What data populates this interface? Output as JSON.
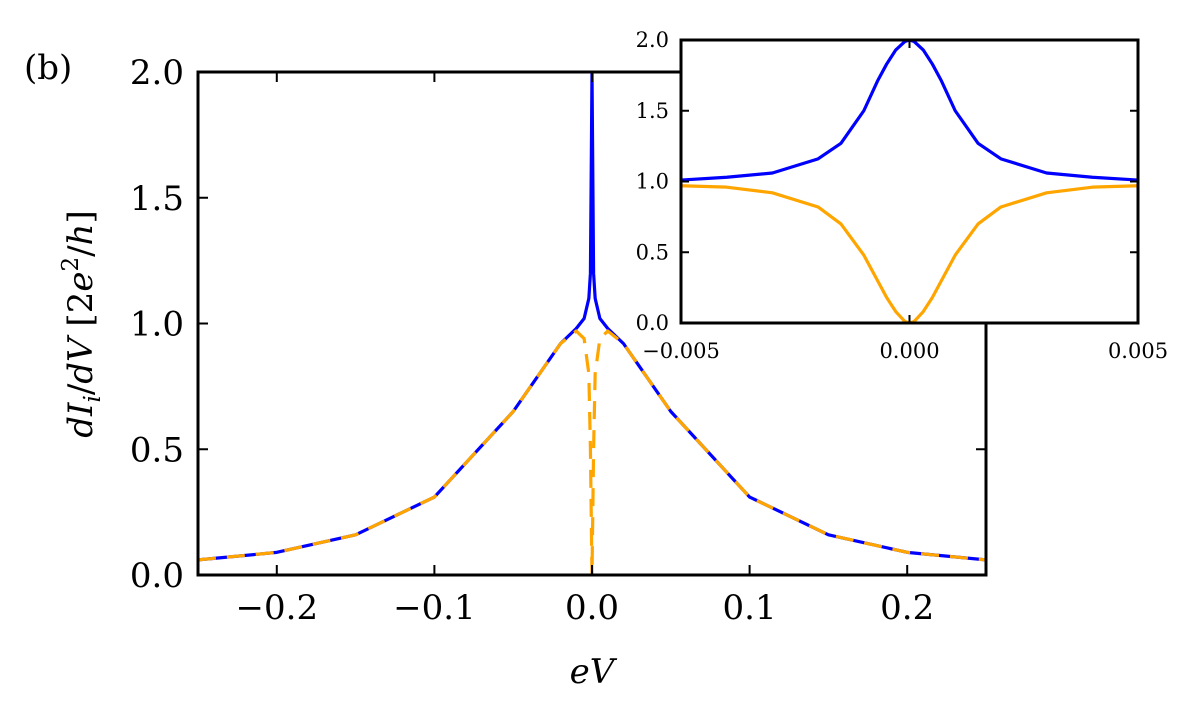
{
  "figure_label": "(b)",
  "chart_data": [
    {
      "id": "main",
      "type": "line",
      "xlabel": "eV",
      "ylabel": "dI_i/dV [2e^2/h]",
      "xlim": [
        -0.25,
        0.25
      ],
      "ylim": [
        0.0,
        2.0
      ],
      "x_ticks": [
        -0.2,
        -0.1,
        0.0,
        0.1,
        0.2
      ],
      "x_tick_labels": [
        "−0.2",
        "−0.1",
        "0.0",
        "0.1",
        "0.2"
      ],
      "y_ticks": [
        0.0,
        0.5,
        1.0,
        1.5,
        2.0
      ],
      "y_tick_labels": [
        "0.0",
        "0.5",
        "1.0",
        "1.5",
        "2.0"
      ],
      "grid": false,
      "series": [
        {
          "color": "#0000ff",
          "style": "solid",
          "x": [
            -0.25,
            -0.2,
            -0.15,
            -0.1,
            -0.05,
            -0.02,
            -0.01,
            -0.005,
            -0.002,
            -0.001,
            0.0,
            0.001,
            0.002,
            0.005,
            0.01,
            0.02,
            0.05,
            0.1,
            0.15,
            0.2,
            0.25
          ],
          "y": [
            0.06,
            0.09,
            0.16,
            0.31,
            0.65,
            0.92,
            0.98,
            1.02,
            1.1,
            1.2,
            2.0,
            1.2,
            1.1,
            1.02,
            0.98,
            0.92,
            0.65,
            0.31,
            0.16,
            0.09,
            0.06
          ]
        },
        {
          "color": "#ffa500",
          "style": "dashed",
          "x": [
            -0.25,
            -0.2,
            -0.15,
            -0.1,
            -0.05,
            -0.02,
            -0.01,
            -0.005,
            -0.002,
            -0.001,
            0.0,
            0.001,
            0.002,
            0.005,
            0.01,
            0.02,
            0.05,
            0.1,
            0.15,
            0.2,
            0.25
          ],
          "y": [
            0.06,
            0.09,
            0.16,
            0.31,
            0.65,
            0.92,
            0.97,
            0.94,
            0.8,
            0.5,
            0.0,
            0.5,
            0.8,
            0.94,
            0.97,
            0.92,
            0.65,
            0.31,
            0.16,
            0.09,
            0.06
          ]
        }
      ]
    },
    {
      "id": "inset",
      "type": "line",
      "xlim": [
        -0.005,
        0.005
      ],
      "ylim": [
        0.0,
        2.0
      ],
      "x_ticks": [
        -0.005,
        0.0,
        0.005
      ],
      "x_tick_labels": [
        "−0.005",
        "0.000",
        "0.005"
      ],
      "y_ticks": [
        0.0,
        0.5,
        1.0,
        1.5,
        2.0
      ],
      "y_tick_labels": [
        "0.0",
        "0.5",
        "1.0",
        "1.5",
        "2.0"
      ],
      "grid": false,
      "series": [
        {
          "color": "#0000ff",
          "style": "solid",
          "x": [
            -0.005,
            -0.004,
            -0.003,
            -0.002,
            -0.0015,
            -0.001,
            -0.0007,
            -0.0005,
            -0.0003,
            -0.0001,
            0.0,
            0.0001,
            0.0003,
            0.0005,
            0.0007,
            0.001,
            0.0015,
            0.002,
            0.003,
            0.004,
            0.005
          ],
          "y": [
            1.01,
            1.03,
            1.06,
            1.16,
            1.27,
            1.5,
            1.71,
            1.83,
            1.93,
            1.99,
            2.0,
            1.99,
            1.93,
            1.83,
            1.71,
            1.5,
            1.27,
            1.16,
            1.06,
            1.03,
            1.01
          ]
        },
        {
          "color": "#ffa500",
          "style": "solid",
          "x": [
            -0.005,
            -0.004,
            -0.003,
            -0.002,
            -0.0015,
            -0.001,
            -0.0007,
            -0.0005,
            -0.0003,
            -0.0001,
            0.0,
            0.0001,
            0.0003,
            0.0005,
            0.0007,
            0.001,
            0.0015,
            0.002,
            0.003,
            0.004,
            0.005
          ],
          "y": [
            0.97,
            0.96,
            0.92,
            0.82,
            0.7,
            0.48,
            0.3,
            0.18,
            0.08,
            0.01,
            0.0,
            0.01,
            0.08,
            0.18,
            0.3,
            0.48,
            0.7,
            0.82,
            0.92,
            0.96,
            0.97
          ]
        }
      ]
    }
  ]
}
